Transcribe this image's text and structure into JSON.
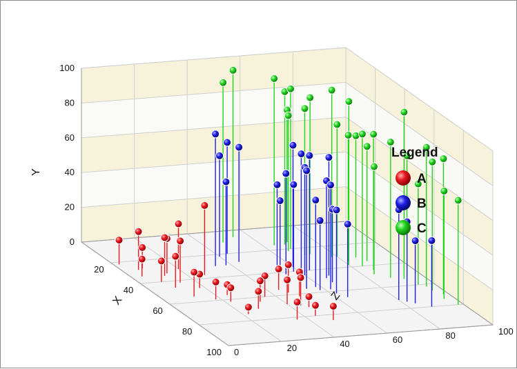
{
  "chart_data": {
    "type": "scatter",
    "subtype": "3d-scatter-with-drop-lines",
    "title": "",
    "xlabel": "X",
    "ylabel": "Y",
    "zlabel": "Z",
    "xlim": [
      0,
      100
    ],
    "ylim": [
      0,
      100
    ],
    "zlim": [
      0,
      100
    ],
    "x_ticks": [
      "20",
      "40",
      "60",
      "80",
      "100"
    ],
    "y_ticks": [
      "0",
      "20",
      "40",
      "60",
      "80",
      "100"
    ],
    "z_ticks": [
      "0",
      "20",
      "40",
      "60",
      "80",
      "100"
    ],
    "grid": true,
    "legend": {
      "title": "Legend",
      "placement": "right"
    },
    "series": [
      {
        "name": "A",
        "color": "#e8191f",
        "points": [
          {
            "x": 22,
            "y": 14,
            "z": 2
          },
          {
            "x": 28,
            "y": 22,
            "z": 6
          },
          {
            "x": 34,
            "y": 10,
            "z": 4
          },
          {
            "x": 27,
            "y": 12,
            "z": 8
          },
          {
            "x": 35,
            "y": 22,
            "z": 12
          },
          {
            "x": 33,
            "y": 20,
            "z": 14
          },
          {
            "x": 30,
            "y": 26,
            "z": 20
          },
          {
            "x": 37,
            "y": 40,
            "z": 26
          },
          {
            "x": 40,
            "y": 12,
            "z": 8
          },
          {
            "x": 46,
            "y": 18,
            "z": 10
          },
          {
            "x": 55,
            "y": 14,
            "z": 12
          },
          {
            "x": 42,
            "y": 24,
            "z": 14
          },
          {
            "x": 48,
            "y": 8,
            "z": 18
          },
          {
            "x": 59,
            "y": 10,
            "z": 18
          },
          {
            "x": 62,
            "y": 8,
            "z": 22
          },
          {
            "x": 56,
            "y": 6,
            "z": 24
          },
          {
            "x": 74,
            "y": 4,
            "z": 22
          },
          {
            "x": 70,
            "y": 10,
            "z": 28
          },
          {
            "x": 64,
            "y": 12,
            "z": 32
          },
          {
            "x": 82,
            "y": 10,
            "z": 36
          },
          {
            "x": 80,
            "y": 6,
            "z": 44
          },
          {
            "x": 60,
            "y": 12,
            "z": 36
          },
          {
            "x": 68,
            "y": 14,
            "z": 40
          },
          {
            "x": 70,
            "y": 16,
            "z": 44
          },
          {
            "x": 85,
            "y": 8,
            "z": 48
          },
          {
            "x": 72,
            "y": 6,
            "z": 46
          },
          {
            "x": 62,
            "y": 14,
            "z": 48
          },
          {
            "x": 55,
            "y": 12,
            "z": 44
          },
          {
            "x": 58,
            "y": 16,
            "z": 46
          }
        ]
      },
      {
        "name": "B",
        "color": "#1f1fe8",
        "points": [
          {
            "x": 22,
            "y": 58,
            "z": 40
          },
          {
            "x": 20,
            "y": 64,
            "z": 44
          },
          {
            "x": 28,
            "y": 66,
            "z": 44
          },
          {
            "x": 30,
            "y": 48,
            "z": 38
          },
          {
            "x": 30,
            "y": 76,
            "z": 34
          },
          {
            "x": 36,
            "y": 48,
            "z": 54
          },
          {
            "x": 38,
            "y": 40,
            "z": 54
          },
          {
            "x": 40,
            "y": 50,
            "z": 58
          },
          {
            "x": 42,
            "y": 58,
            "z": 54
          },
          {
            "x": 44,
            "y": 62,
            "z": 60
          },
          {
            "x": 38,
            "y": 66,
            "z": 62
          },
          {
            "x": 36,
            "y": 70,
            "z": 60
          },
          {
            "x": 40,
            "y": 66,
            "z": 64
          },
          {
            "x": 46,
            "y": 68,
            "z": 68
          },
          {
            "x": 48,
            "y": 56,
            "z": 66
          },
          {
            "x": 52,
            "y": 42,
            "z": 66
          },
          {
            "x": 55,
            "y": 50,
            "z": 58
          },
          {
            "x": 58,
            "y": 60,
            "z": 62
          },
          {
            "x": 56,
            "y": 68,
            "z": 54
          },
          {
            "x": 58,
            "y": 40,
            "z": 58
          },
          {
            "x": 62,
            "y": 48,
            "z": 62
          },
          {
            "x": 66,
            "y": 42,
            "z": 64
          },
          {
            "x": 72,
            "y": 52,
            "z": 80
          },
          {
            "x": 74,
            "y": 46,
            "z": 82
          },
          {
            "x": 76,
            "y": 36,
            "z": 84
          },
          {
            "x": 80,
            "y": 38,
            "z": 88
          }
        ]
      },
      {
        "name": "C",
        "color": "#22d41f",
        "points": [
          {
            "x": 10,
            "y": 92,
            "z": 48
          },
          {
            "x": 6,
            "y": 96,
            "z": 54
          },
          {
            "x": 16,
            "y": 96,
            "z": 64
          },
          {
            "x": 16,
            "y": 88,
            "z": 68
          },
          {
            "x": 20,
            "y": 92,
            "z": 68
          },
          {
            "x": 26,
            "y": 90,
            "z": 72
          },
          {
            "x": 26,
            "y": 84,
            "z": 70
          },
          {
            "x": 22,
            "y": 78,
            "z": 66
          },
          {
            "x": 14,
            "y": 76,
            "z": 70
          },
          {
            "x": 30,
            "y": 96,
            "z": 78
          },
          {
            "x": 38,
            "y": 94,
            "z": 80
          },
          {
            "x": 30,
            "y": 76,
            "z": 80
          },
          {
            "x": 34,
            "y": 72,
            "z": 82
          },
          {
            "x": 40,
            "y": 76,
            "z": 84
          },
          {
            "x": 32,
            "y": 70,
            "z": 86
          },
          {
            "x": 44,
            "y": 78,
            "z": 86
          },
          {
            "x": 36,
            "y": 66,
            "z": 88
          },
          {
            "x": 48,
            "y": 62,
            "z": 84
          },
          {
            "x": 52,
            "y": 78,
            "z": 88
          },
          {
            "x": 56,
            "y": 72,
            "z": 92
          },
          {
            "x": 60,
            "y": 58,
            "z": 94
          },
          {
            "x": 54,
            "y": 96,
            "z": 92
          },
          {
            "x": 62,
            "y": 80,
            "z": 96
          },
          {
            "x": 66,
            "y": 74,
            "z": 96
          },
          {
            "x": 70,
            "y": 78,
            "z": 98
          },
          {
            "x": 74,
            "y": 62,
            "z": 96
          },
          {
            "x": 80,
            "y": 60,
            "z": 98
          }
        ]
      }
    ]
  }
}
